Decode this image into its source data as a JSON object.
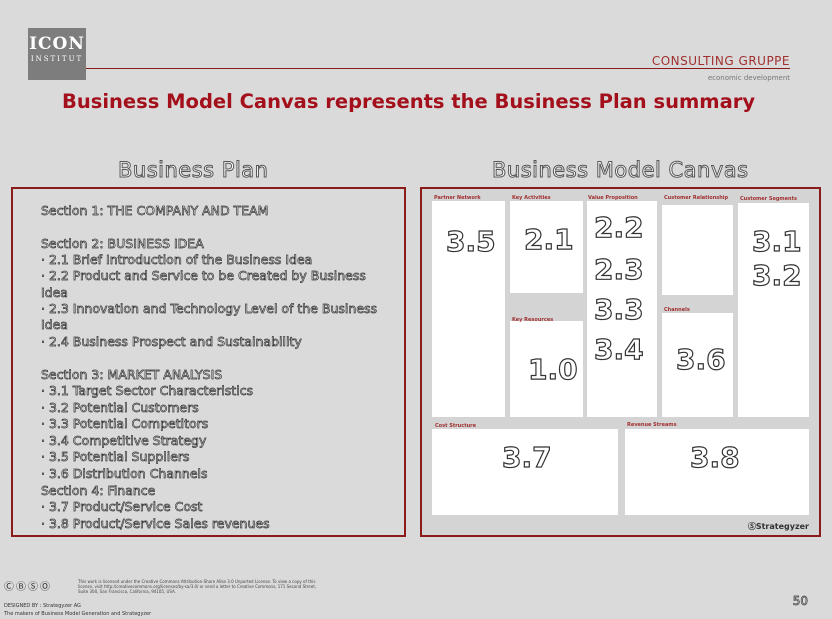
{
  "header": {
    "logo_main": "ICON",
    "logo_sub": "INSTITUT",
    "brand": "CONSULTING GRUPPE",
    "brand_sub": "economic development",
    "title": "Business Model Canvas represents the Business Plan summary"
  },
  "columns": {
    "left_title": "Business Plan",
    "right_title": "Business Model Canvas"
  },
  "business_plan": {
    "lines": [
      "Section 1: THE COMPANY AND TEAM",
      "Section 2: BUSINESS IDEA",
      "· 2.1 Brief Introduction of the Business Idea",
      "· 2.2 Product and Service to be Created by Business",
      "Idea",
      "· 2.3 Innovation and Technology Level of the Business",
      "Idea",
      "· 2.4 Business Prospect and Sustainability",
      "Section 3: MARKET ANALYSIS",
      "· 3.1 Target Sector Characteristics",
      "· 3.2 Potential Customers",
      "· 3.3 Potential Competitors",
      "· 3.4 Competitive Strategy",
      "· 3.5 Potential Suppliers",
      "· 3.6 Distribution Channels",
      "Section 4: Finance",
      "· 3.7 Product/Service Cost",
      "· 3.8 Product/Service Sales revenues"
    ]
  },
  "canvas": {
    "labels": {
      "partner_network": "Partner Network",
      "key_activities": "Key Activities",
      "value_proposition": "Value Proposition",
      "customer_relationship": "Customer Relationship",
      "customer_segments": "Customer Segments",
      "key_resources": "Key Resources",
      "channels": "Channels",
      "cost_structure": "Cost Structure",
      "revenue_streams": "Revenue Streams"
    },
    "numbers": {
      "partner_network": "3.5",
      "key_activities": "2.1",
      "value_proposition": [
        "2.2",
        "2.3",
        "3.3",
        "3.4"
      ],
      "customer_segments": [
        "3.1",
        "3.2"
      ],
      "key_resources": "1.0",
      "channels": "3.6",
      "cost_structure": "3.7",
      "revenue_streams": "3.8"
    },
    "brand": "ⓈStrategyzer"
  },
  "footer": {
    "cc_icons": "ⒸⒷⓈⓄ",
    "license_text": "This work is licensed under the Creative Commons Attribution-Share Alike 3.0 Unported License. To view a copy of this license, visit http://creativecommons.org/licenses/by-sa/3.0/ or send a letter to Creative Commons, 171 Second Street, Suite 300, San Francisco, California, 94105, USA.",
    "designed_by": "DESIGNED BY : Strategyzer AG",
    "makers": "The makers of Business Model Generation and Strategyzer",
    "page_number": "50"
  }
}
